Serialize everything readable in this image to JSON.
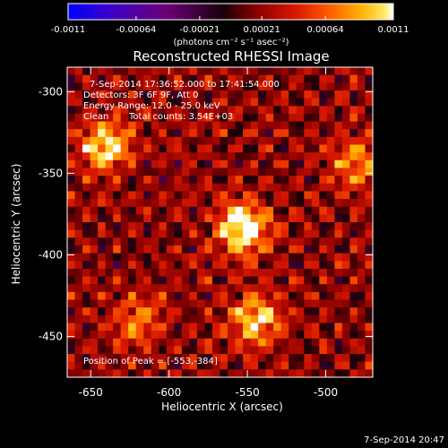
{
  "chart_data": {
    "type": "heatmap",
    "title": "Reconstructed RHESSI Image",
    "xlabel": "Heliocentric X (arcsec)",
    "ylabel": "Heliocentric Y (arcsec)",
    "xlim": [
      -665,
      -470
    ],
    "ylim": [
      -475,
      -285
    ],
    "x_ticks": [
      -650,
      -600,
      -550,
      -500
    ],
    "y_ticks": [
      -300,
      -350,
      -400,
      -450
    ],
    "colorbar": {
      "min": -0.0011,
      "max": 0.0011,
      "ticks": [
        -0.0011,
        -0.00064,
        -0.00021,
        0.00021,
        0.00064,
        0.0011
      ],
      "tick_labels": [
        "-0.0011",
        "-0.00064",
        "-0.00021",
        "0.00021",
        "0.00064",
        "0.0011"
      ],
      "unit_label": "(photons cm⁻² s⁻¹ asec⁻²)"
    },
    "annotations": {
      "time_range": "7-Sep-2014 17:36:52.000 to 17:41:54.000",
      "detectors": "Detectors: 3F 6F 9F, Att 0",
      "energy": "Energy Range: 12.0 - 25.0 keV",
      "algorithm": "Clean",
      "counts": "Total counts: 3.54E+03",
      "peak": "Position of Peak = [-553,-384]"
    },
    "peak_position": [
      -553,
      -384
    ],
    "sources": [
      {
        "x": -553,
        "y": -384,
        "peak": 0.0011
      },
      {
        "x": -640,
        "y": -333,
        "peak": 0.0009
      },
      {
        "x": -545,
        "y": -440,
        "peak": 0.0008
      },
      {
        "x": -480,
        "y": -345,
        "peak": 0.0006
      },
      {
        "x": -620,
        "y": -440,
        "peak": 0.0005
      }
    ]
  },
  "footer": {
    "timestamp": "7-Sep-2014 20:47"
  }
}
